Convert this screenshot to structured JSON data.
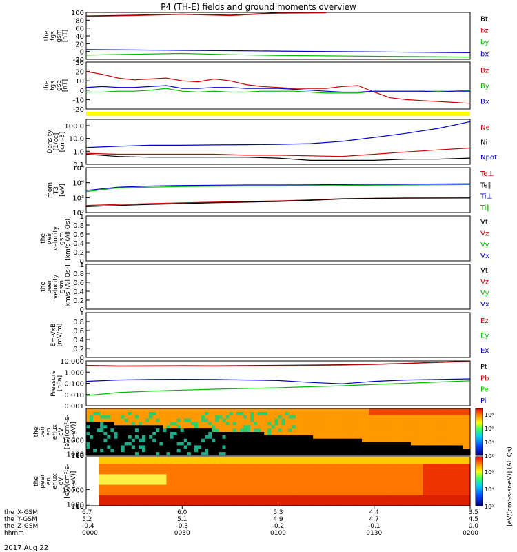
{
  "title": "P4 (TH-E) fields and ground moments overview",
  "date_label": "2017 Aug 22",
  "chart_data": [
    {
      "type": "line",
      "panel": "fgs_gsm",
      "ylabel": [
        "the",
        "fgs",
        "gsm",
        "[nT]"
      ],
      "ylim": [
        -20,
        100
      ],
      "yticks": [
        -20,
        0,
        20,
        40,
        60,
        80,
        100
      ],
      "x": [
        0,
        15,
        30,
        45,
        60,
        75,
        90,
        105,
        120
      ],
      "series": [
        {
          "name": "Bt",
          "color": "#000000",
          "values": [
            91,
            93,
            96,
            93,
            99,
            100,
            null,
            null,
            null
          ]
        },
        {
          "name": "bz",
          "color": "#cc0000",
          "values": [
            90,
            92,
            95,
            92,
            98,
            99,
            null,
            null,
            null
          ]
        },
        {
          "name": "by",
          "color": "#00bb00",
          "values": [
            -9,
            -7,
            -5,
            -8,
            -10,
            -11,
            -12,
            -13,
            -14
          ]
        },
        {
          "name": "bx",
          "color": "#0000cc",
          "values": [
            5,
            4,
            3,
            2,
            1,
            0,
            -1,
            -2,
            -3
          ]
        }
      ]
    },
    {
      "type": "line",
      "panel": "fgs_gse",
      "ylabel": [
        "the",
        "fgs",
        "gse",
        "[nT]"
      ],
      "ylim": [
        -20,
        30
      ],
      "yticks": [
        -20,
        -10,
        0,
        10,
        20,
        30
      ],
      "x": [
        0,
        5,
        10,
        15,
        20,
        25,
        30,
        35,
        40,
        45,
        50,
        55,
        60,
        65,
        70,
        75,
        80,
        85,
        90,
        95,
        100,
        105,
        110,
        115,
        120
      ],
      "series": [
        {
          "name": "Bz",
          "color": "#cc0000",
          "values": [
            20,
            17,
            13,
            11,
            12,
            13,
            10,
            9,
            12,
            10,
            6,
            4,
            3,
            2,
            2,
            2,
            4,
            5,
            -2,
            -8,
            -10,
            -11,
            -12,
            -13,
            -14
          ]
        },
        {
          "name": "By",
          "color": "#00bb00",
          "values": [
            -2,
            -2,
            -1,
            -1,
            0,
            2,
            -1,
            -2,
            -1,
            -2,
            -2,
            -1,
            -1,
            -1,
            -2,
            -3,
            -3,
            -3,
            -1,
            -1,
            -1,
            -1,
            -1,
            -1,
            0
          ]
        },
        {
          "name": "Bx",
          "color": "#0000cc",
          "values": [
            3,
            4,
            3,
            3,
            4,
            5,
            2,
            2,
            3,
            3,
            2,
            2,
            2,
            1,
            0,
            -1,
            -2,
            -2,
            -1,
            -1,
            -1,
            -1,
            -2,
            -1,
            -1
          ]
        }
      ]
    },
    {
      "type": "line",
      "panel": "density",
      "log": true,
      "ylabel": [
        "Density",
        "[1/cc]",
        "[cm-3]"
      ],
      "ylim": [
        0.1,
        300
      ],
      "yticks": [
        0.1,
        1.0,
        10.0,
        100.0
      ],
      "ytick_labels": [
        "0.1",
        "1.0",
        "10.0",
        "100.0"
      ],
      "x": [
        0,
        10,
        20,
        30,
        40,
        50,
        60,
        70,
        80,
        90,
        100,
        110,
        120
      ],
      "series": [
        {
          "name": "Ne",
          "color": "#cc0000",
          "values": [
            0.7,
            0.6,
            0.6,
            0.6,
            0.6,
            0.5,
            0.5,
            0.45,
            0.4,
            0.6,
            0.9,
            1.3,
            1.8
          ]
        },
        {
          "name": "Ni",
          "color": "#000000",
          "values": [
            0.6,
            0.4,
            0.35,
            0.35,
            0.35,
            0.35,
            0.3,
            0.2,
            0.2,
            0.2,
            0.25,
            0.25,
            0.3
          ]
        },
        {
          "name": "Npot",
          "color": "#0000cc",
          "values": [
            2.0,
            2.5,
            3.0,
            3.0,
            3.2,
            3.3,
            3.5,
            4.0,
            6.0,
            12,
            25,
            60,
            200
          ]
        }
      ]
    },
    {
      "type": "line",
      "panel": "temperature",
      "log": true,
      "ylabel": [
        "mom",
        "T3",
        "[eV]"
      ],
      "ylim": [
        100,
        100000
      ],
      "yticks": [
        100,
        1000,
        10000,
        100000
      ],
      "ytick_labels": [
        "10²",
        "10³",
        "10⁴",
        "10⁵"
      ],
      "x": [
        0,
        10,
        20,
        30,
        40,
        50,
        60,
        70,
        80,
        90,
        100,
        110,
        120
      ],
      "series": [
        {
          "name": "Te⊥",
          "color": "#cc0000",
          "values": [
            300,
            350,
            400,
            450,
            500,
            550,
            600,
            700,
            850,
            900,
            950,
            950,
            950
          ]
        },
        {
          "name": "Te‖",
          "color": "#000000",
          "values": [
            250,
            300,
            350,
            400,
            450,
            500,
            550,
            650,
            800,
            880,
            920,
            930,
            940
          ]
        },
        {
          "name": "Ti⊥",
          "color": "#0000cc",
          "values": [
            3000,
            5000,
            6000,
            6500,
            6800,
            7000,
            7000,
            7200,
            7500,
            7800,
            8000,
            8200,
            8500
          ]
        },
        {
          "name": "Ti‖",
          "color": "#00bb00",
          "values": [
            2500,
            4500,
            5000,
            5500,
            5800,
            6000,
            6000,
            6200,
            6500,
            6800,
            7000,
            7200,
            7500
          ]
        }
      ]
    },
    {
      "type": "line",
      "panel": "peir_velocity",
      "ylabel": [
        "the",
        "peir",
        "velocity",
        "gsm",
        "[km/s (All Qs)]"
      ],
      "ylim": [
        0,
        1
      ],
      "yticks": [
        0.0,
        0.2,
        0.4,
        0.6,
        0.8,
        1.0
      ],
      "series": [
        {
          "name": "Vt",
          "color": "#000000",
          "values": []
        },
        {
          "name": "Vz",
          "color": "#cc0000",
          "values": []
        },
        {
          "name": "Vy",
          "color": "#00bb00",
          "values": []
        },
        {
          "name": "Vx",
          "color": "#0000cc",
          "values": []
        }
      ]
    },
    {
      "type": "line",
      "panel": "peer_velocity",
      "ylabel": [
        "the",
        "peer",
        "velocity",
        "gsm",
        "[km/s (All Qs)]"
      ],
      "ylim": [
        0,
        1
      ],
      "yticks": [
        0.0,
        0.2,
        0.4,
        0.6,
        0.8,
        1.0
      ],
      "series": [
        {
          "name": "Vt",
          "color": "#000000",
          "values": []
        },
        {
          "name": "Vz",
          "color": "#cc0000",
          "values": []
        },
        {
          "name": "Vy",
          "color": "#00bb00",
          "values": []
        },
        {
          "name": "Vx",
          "color": "#0000cc",
          "values": []
        }
      ]
    },
    {
      "type": "line",
      "panel": "efield",
      "ylabel": [
        "E=-VxB",
        "[mV/m]"
      ],
      "ylim": [
        0,
        1
      ],
      "yticks": [
        0.0,
        0.2,
        0.4,
        0.6,
        0.8,
        1.0
      ],
      "series": [
        {
          "name": "Ez",
          "color": "#cc0000",
          "values": []
        },
        {
          "name": "Ey",
          "color": "#00bb00",
          "values": []
        },
        {
          "name": "Ex",
          "color": "#0000cc",
          "values": []
        }
      ]
    },
    {
      "type": "line",
      "panel": "pressure",
      "log": true,
      "ylabel": [
        "Pressure",
        "[nPa]"
      ],
      "ylim": [
        0.001,
        10
      ],
      "yticks": [
        0.001,
        0.01,
        0.1,
        1.0,
        10.0
      ],
      "ytick_labels": [
        "0.001",
        "0.010",
        "0.100",
        "1.000",
        "10.000"
      ],
      "x": [
        0,
        10,
        20,
        30,
        40,
        50,
        60,
        70,
        80,
        90,
        100,
        110,
        120
      ],
      "series": [
        {
          "name": "Pt",
          "color": "#000000",
          "values": [
            4.0,
            3.5,
            3.6,
            3.7,
            3.6,
            3.8,
            4.0,
            4.2,
            4.5,
            5.0,
            6.0,
            7.5,
            9.5
          ]
        },
        {
          "name": "Pb",
          "color": "#cc0000",
          "values": [
            3.8,
            3.3,
            3.4,
            3.5,
            3.4,
            3.6,
            3.8,
            4.0,
            4.3,
            4.8,
            5.8,
            7.2,
            9.0
          ]
        },
        {
          "name": "Pe",
          "color": "#00bb00",
          "values": [
            0.008,
            0.015,
            0.02,
            0.025,
            0.03,
            0.035,
            0.04,
            0.05,
            0.06,
            0.08,
            0.1,
            0.13,
            0.17
          ]
        },
        {
          "name": "Pi",
          "color": "#0000cc",
          "values": [
            0.15,
            0.2,
            0.22,
            0.23,
            0.22,
            0.2,
            0.18,
            0.12,
            0.09,
            0.15,
            0.2,
            0.22,
            0.25
          ]
        }
      ]
    },
    {
      "type": "heatmap",
      "panel": "peir_en_eflux",
      "ylabel": [
        "the",
        "peir",
        "en",
        "eflux",
        "eV",
        "[eV/(cm²-s-",
        "sr-eV)]"
      ],
      "ylim": [
        5,
        30000
      ],
      "yticks": [
        10,
        100,
        1000,
        10000
      ],
      "ytick_labels": [
        "10",
        "100",
        "1000",
        "10000"
      ]
    },
    {
      "type": "heatmap",
      "panel": "peer_en_eflux",
      "ylabel": [
        "the",
        "peer",
        "en",
        "eflux",
        "eV",
        "[eV/(cm²-s-",
        "sr-eV)]"
      ],
      "ylim": [
        5,
        30000
      ],
      "yticks": [
        10,
        100,
        1000,
        10000
      ],
      "ytick_labels": [
        "10",
        "100",
        "1000",
        "10000"
      ]
    }
  ],
  "colorbar": {
    "label": "[eV/(cm²-s-sr-eV)] (All Qs)",
    "ticks": [
      "10²",
      "10⁴",
      "10⁶",
      "10⁸"
    ],
    "ticks2": [
      "10²",
      "10⁴",
      "10⁶"
    ]
  },
  "xaxis": {
    "row_labels": [
      "the_X-GSM",
      "the_Y-GSM",
      "the_Z-GSM",
      "hhmm"
    ],
    "ticks": [
      {
        "t": 0,
        "vals": [
          "6.7",
          "5.2",
          "-0.4",
          "0000"
        ]
      },
      {
        "t": 30,
        "vals": [
          "6.0",
          "5.1",
          "-0.3",
          "0030"
        ]
      },
      {
        "t": 60,
        "vals": [
          "5.3",
          "4.9",
          "-0.2",
          "0100"
        ]
      },
      {
        "t": 90,
        "vals": [
          "4.4",
          "4.7",
          "-0.1",
          "0130"
        ]
      },
      {
        "t": 120,
        "vals": [
          "3.5",
          "4.5",
          "0.0",
          "0200"
        ]
      }
    ]
  }
}
